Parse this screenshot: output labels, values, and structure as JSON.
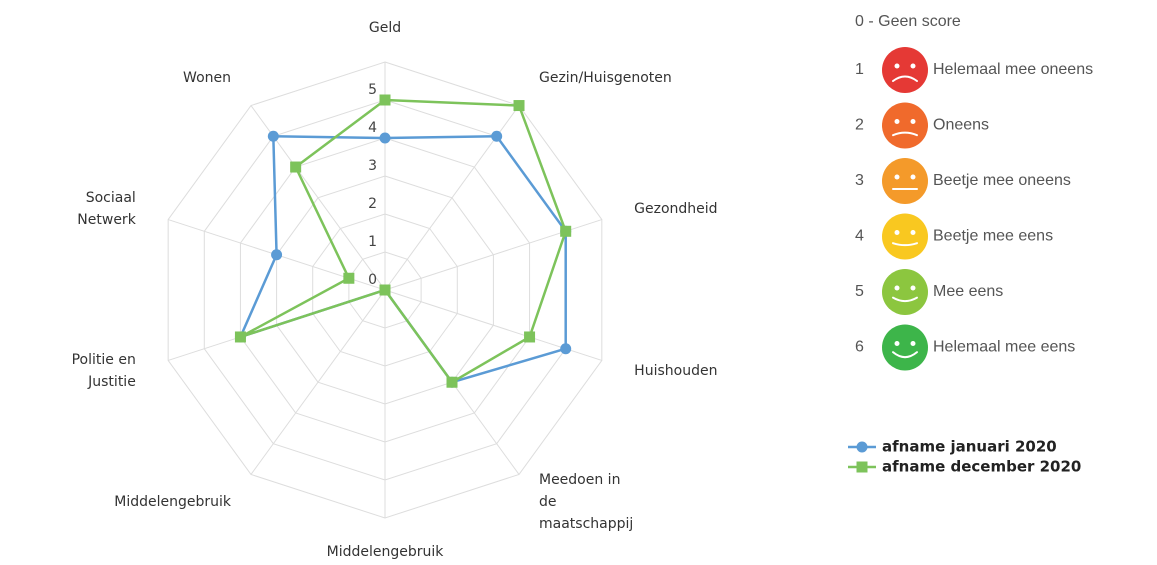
{
  "chart_data": {
    "type": "radar",
    "categories": [
      "Geld",
      "Gezin/Huisgenoten",
      "Gezondheid",
      "Huishouden",
      "Meedoen in\nde\nmaatschappij",
      "Middelengebruik",
      "Middelengebruik",
      "Politie en\nJustitie",
      "Sociaal\nNetwerk",
      "Wonen"
    ],
    "series": [
      {
        "name": "afname januari 2020",
        "color": "#5b9bd5",
        "marker": "circle",
        "values": [
          4,
          5,
          5,
          5,
          3,
          0,
          0,
          4,
          3,
          5
        ]
      },
      {
        "name": "afname december 2020",
        "color": "#7dc35b",
        "marker": "square",
        "values": [
          5,
          6,
          5,
          4,
          3,
          0,
          0,
          4,
          1,
          4
        ]
      }
    ],
    "ylim": [
      0,
      6
    ],
    "yticks": [
      0,
      1,
      2,
      3,
      4,
      5
    ],
    "grid": true
  },
  "score_legend": {
    "title": "0 - Geen score",
    "items": [
      {
        "score": 1,
        "label": "Helemaal mee oneens",
        "color": "#e53935"
      },
      {
        "score": 2,
        "label": "Oneens",
        "color": "#f06a2c"
      },
      {
        "score": 3,
        "label": "Beetje mee oneens",
        "color": "#f49a2a"
      },
      {
        "score": 4,
        "label": "Beetje mee eens",
        "color": "#f9c820"
      },
      {
        "score": 5,
        "label": "Mee eens",
        "color": "#8cc63f"
      },
      {
        "score": 6,
        "label": "Helemaal mee eens",
        "color": "#3db54a"
      }
    ]
  }
}
